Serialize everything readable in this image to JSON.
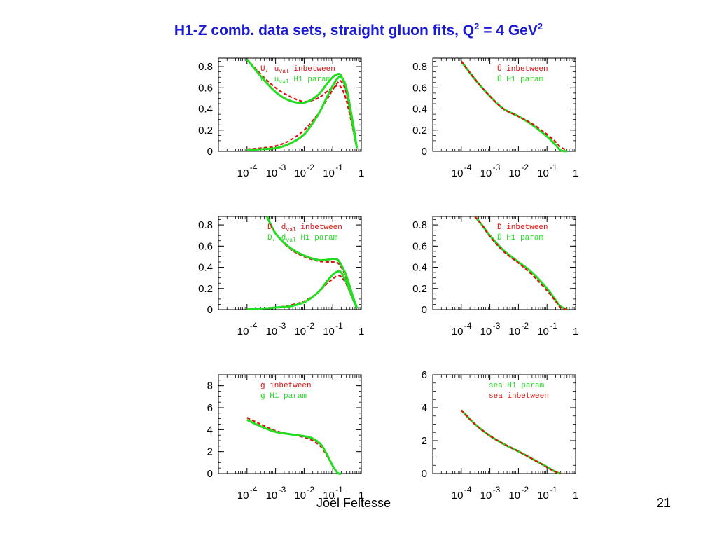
{
  "slide": {
    "title_main": "H1-Z comb. data sets, straight gluon fits, Q",
    "title_sup1": "2",
    "title_mid": " = 4 GeV",
    "title_sup2": "2",
    "author": "Joël Feltesse",
    "page_number": "21"
  },
  "colors": {
    "series_green": "#22dd22",
    "series_red": "#dd1111",
    "title_blue": "#1a1ad6"
  },
  "chart_data": [
    {
      "id": "U",
      "type": "line",
      "x_scale": "log",
      "xlim": [
        1e-05,
        1
      ],
      "ylim": [
        0,
        0.88
      ],
      "xticks": [
        {
          "base": "10",
          "exp": "-4"
        },
        {
          "base": "10",
          "exp": "-3"
        },
        {
          "base": "10",
          "exp": "-2"
        },
        {
          "base": "10",
          "exp": "-1"
        },
        {
          "base": "1",
          "exp": ""
        }
      ],
      "yticks": [
        "0",
        "0.2",
        "0.4",
        "0.6",
        "0.8"
      ],
      "ytick_values": [
        0,
        0.2,
        0.4,
        0.6,
        0.8
      ],
      "legend": [
        {
          "label": "U, u",
          "sub": "val",
          "tail": "  inbetween",
          "color": "red"
        },
        {
          "label": "U, u",
          "sub": "val",
          "tail": "  H1 param",
          "color": "green"
        }
      ],
      "series": [
        {
          "name": "U inbetween",
          "color": "red",
          "dashed": true,
          "x": [
            0.0001,
            0.0003,
            0.001,
            0.003,
            0.01,
            0.03,
            0.06,
            0.1,
            0.15,
            0.2,
            0.3,
            0.5,
            0.7
          ],
          "y": [
            0.87,
            0.73,
            0.6,
            0.52,
            0.47,
            0.5,
            0.56,
            0.6,
            0.62,
            0.6,
            0.48,
            0.22,
            0.03
          ]
        },
        {
          "name": "U H1 param",
          "color": "green",
          "dashed": false,
          "x": [
            0.0001,
            0.0003,
            0.001,
            0.003,
            0.01,
            0.03,
            0.06,
            0.1,
            0.15,
            0.2,
            0.3,
            0.5,
            0.7
          ],
          "y": [
            0.87,
            0.71,
            0.56,
            0.48,
            0.46,
            0.53,
            0.63,
            0.7,
            0.73,
            0.71,
            0.57,
            0.25,
            0.03
          ]
        },
        {
          "name": "u_val inbetween",
          "color": "red",
          "dashed": true,
          "x": [
            0.0001,
            0.0003,
            0.001,
            0.003,
            0.01,
            0.03,
            0.06,
            0.1,
            0.15,
            0.2,
            0.3,
            0.5,
            0.7
          ],
          "y": [
            0.02,
            0.03,
            0.05,
            0.1,
            0.2,
            0.35,
            0.48,
            0.58,
            0.65,
            0.66,
            0.55,
            0.26,
            0.03
          ]
        },
        {
          "name": "u_val H1 param",
          "color": "green",
          "dashed": false,
          "x": [
            0.0001,
            0.0003,
            0.001,
            0.003,
            0.01,
            0.03,
            0.06,
            0.1,
            0.15,
            0.2,
            0.3,
            0.5,
            0.7
          ],
          "y": [
            0.01,
            0.02,
            0.03,
            0.07,
            0.16,
            0.34,
            0.5,
            0.62,
            0.69,
            0.7,
            0.6,
            0.28,
            0.03
          ]
        }
      ]
    },
    {
      "id": "Ubar",
      "type": "line",
      "x_scale": "log",
      "xlim": [
        1e-05,
        1
      ],
      "ylim": [
        0,
        0.88
      ],
      "xticks": [
        {
          "base": "10",
          "exp": "-4"
        },
        {
          "base": "10",
          "exp": "-3"
        },
        {
          "base": "10",
          "exp": "-2"
        },
        {
          "base": "10",
          "exp": "-1"
        },
        {
          "base": "1",
          "exp": ""
        }
      ],
      "yticks": [
        "0",
        "0.2",
        "0.4",
        "0.6",
        "0.8"
      ],
      "ytick_values": [
        0,
        0.2,
        0.4,
        0.6,
        0.8
      ],
      "legend": [
        {
          "label": "Ū",
          "sub": "",
          "tail": "  inbetween",
          "color": "red"
        },
        {
          "label": "Ū",
          "sub": "",
          "tail": "  H1 param",
          "color": "green"
        }
      ],
      "series": [
        {
          "name": "Ubar H1 param",
          "color": "green",
          "dashed": false,
          "x": [
            0.0001,
            0.0003,
            0.001,
            0.003,
            0.01,
            0.03,
            0.1,
            0.2,
            0.3,
            0.5
          ],
          "y": [
            0.85,
            0.68,
            0.52,
            0.4,
            0.33,
            0.25,
            0.14,
            0.06,
            0.01,
            0
          ]
        },
        {
          "name": "Ubar inbetween",
          "color": "red",
          "dashed": true,
          "x": [
            0.0001,
            0.0003,
            0.001,
            0.003,
            0.01,
            0.03,
            0.1,
            0.2,
            0.3,
            0.5
          ],
          "y": [
            0.85,
            0.68,
            0.52,
            0.4,
            0.33,
            0.26,
            0.16,
            0.09,
            0.04,
            0.01
          ]
        }
      ]
    },
    {
      "id": "D",
      "type": "line",
      "x_scale": "log",
      "xlim": [
        1e-05,
        1
      ],
      "ylim": [
        0,
        0.88
      ],
      "xticks": [
        {
          "base": "10",
          "exp": "-4"
        },
        {
          "base": "10",
          "exp": "-3"
        },
        {
          "base": "10",
          "exp": "-2"
        },
        {
          "base": "10",
          "exp": "-1"
        },
        {
          "base": "1",
          "exp": ""
        }
      ],
      "yticks": [
        "0",
        "0.2",
        "0.4",
        "0.6",
        "0.8"
      ],
      "ytick_values": [
        0,
        0.2,
        0.4,
        0.6,
        0.8
      ],
      "legend": [
        {
          "label": "D, d",
          "sub": "val",
          "tail": "  inbetween",
          "color": "red"
        },
        {
          "label": "D, d",
          "sub": "val",
          "tail": "  H1 param",
          "color": "green"
        }
      ],
      "series": [
        {
          "name": "D inbetween",
          "color": "red",
          "dashed": true,
          "x": [
            0.0005,
            0.001,
            0.003,
            0.01,
            0.03,
            0.06,
            0.1,
            0.15,
            0.2,
            0.3,
            0.5,
            0.7
          ],
          "y": [
            0.88,
            0.72,
            0.58,
            0.5,
            0.46,
            0.45,
            0.45,
            0.44,
            0.4,
            0.3,
            0.12,
            0.02
          ]
        },
        {
          "name": "D H1 param",
          "color": "green",
          "dashed": false,
          "x": [
            0.0005,
            0.001,
            0.003,
            0.01,
            0.03,
            0.06,
            0.1,
            0.15,
            0.2,
            0.3,
            0.5,
            0.7
          ],
          "y": [
            0.88,
            0.72,
            0.59,
            0.51,
            0.47,
            0.47,
            0.48,
            0.47,
            0.42,
            0.32,
            0.13,
            0.02
          ]
        },
        {
          "name": "d_val inbetween",
          "color": "red",
          "dashed": true,
          "x": [
            0.0001,
            0.0003,
            0.001,
            0.003,
            0.01,
            0.03,
            0.06,
            0.1,
            0.15,
            0.2,
            0.3,
            0.5,
            0.7
          ],
          "y": [
            0.01,
            0.01,
            0.02,
            0.04,
            0.08,
            0.16,
            0.24,
            0.29,
            0.32,
            0.31,
            0.24,
            0.1,
            0.01
          ]
        },
        {
          "name": "d_val H1 param",
          "color": "green",
          "dashed": false,
          "x": [
            0.0001,
            0.0003,
            0.001,
            0.003,
            0.01,
            0.03,
            0.06,
            0.1,
            0.15,
            0.2,
            0.3,
            0.5,
            0.7
          ],
          "y": [
            0.01,
            0.01,
            0.02,
            0.03,
            0.07,
            0.16,
            0.26,
            0.33,
            0.36,
            0.35,
            0.26,
            0.11,
            0.01
          ]
        }
      ]
    },
    {
      "id": "Dbar",
      "type": "line",
      "x_scale": "log",
      "xlim": [
        1e-05,
        1
      ],
      "ylim": [
        0,
        0.88
      ],
      "xticks": [
        {
          "base": "10",
          "exp": "-4"
        },
        {
          "base": "10",
          "exp": "-3"
        },
        {
          "base": "10",
          "exp": "-2"
        },
        {
          "base": "10",
          "exp": "-1"
        },
        {
          "base": "1",
          "exp": ""
        }
      ],
      "yticks": [
        "0",
        "0.2",
        "0.4",
        "0.6",
        "0.8"
      ],
      "ytick_values": [
        0,
        0.2,
        0.4,
        0.6,
        0.8
      ],
      "legend": [
        {
          "label": "D̄",
          "sub": "",
          "tail": "  inbetween",
          "color": "red"
        },
        {
          "label": "D̄",
          "sub": "",
          "tail": "  H1 param",
          "color": "green"
        }
      ],
      "series": [
        {
          "name": "Dbar H1 param",
          "color": "green",
          "dashed": false,
          "x": [
            0.0003,
            0.0006,
            0.001,
            0.003,
            0.01,
            0.03,
            0.1,
            0.2,
            0.3,
            0.5
          ],
          "y": [
            0.88,
            0.78,
            0.7,
            0.56,
            0.45,
            0.35,
            0.2,
            0.09,
            0.03,
            0
          ]
        },
        {
          "name": "Dbar inbetween",
          "color": "red",
          "dashed": true,
          "x": [
            0.0003,
            0.0006,
            0.001,
            0.003,
            0.01,
            0.03,
            0.1,
            0.2,
            0.3,
            0.5
          ],
          "y": [
            0.88,
            0.78,
            0.69,
            0.55,
            0.44,
            0.33,
            0.18,
            0.08,
            0.02,
            0
          ]
        }
      ]
    },
    {
      "id": "g",
      "type": "line",
      "x_scale": "log",
      "xlim": [
        1e-05,
        1
      ],
      "ylim": [
        0,
        9
      ],
      "xticks": [
        {
          "base": "10",
          "exp": "-4"
        },
        {
          "base": "10",
          "exp": "-3"
        },
        {
          "base": "10",
          "exp": "-2"
        },
        {
          "base": "10",
          "exp": "-1"
        },
        {
          "base": "1",
          "exp": ""
        }
      ],
      "yticks": [
        "0",
        "2",
        "4",
        "6",
        "8"
      ],
      "ytick_values": [
        0,
        2,
        4,
        6,
        8
      ],
      "legend": [
        {
          "label": "g",
          "sub": "",
          "tail": "  inbetween",
          "color": "red"
        },
        {
          "label": "g",
          "sub": "",
          "tail": "  H1 param",
          "color": "green"
        }
      ],
      "series": [
        {
          "name": "g inbetween",
          "color": "red",
          "dashed": true,
          "x": [
            0.0001,
            0.0003,
            0.001,
            0.003,
            0.01,
            0.02,
            0.04,
            0.07,
            0.1,
            0.15,
            0.2
          ],
          "y": [
            5.1,
            4.5,
            3.9,
            3.6,
            3.3,
            3.0,
            2.4,
            1.4,
            0.7,
            0.05,
            0
          ]
        },
        {
          "name": "g H1 param",
          "color": "green",
          "dashed": false,
          "x": [
            0.0001,
            0.0003,
            0.001,
            0.003,
            0.01,
            0.02,
            0.04,
            0.07,
            0.1,
            0.15,
            0.2
          ],
          "y": [
            4.9,
            4.3,
            3.8,
            3.6,
            3.4,
            3.2,
            2.6,
            1.5,
            0.7,
            0.05,
            0
          ]
        }
      ]
    },
    {
      "id": "sea",
      "type": "line",
      "x_scale": "log",
      "xlim": [
        1e-05,
        1
      ],
      "ylim": [
        0,
        6
      ],
      "xticks": [
        {
          "base": "10",
          "exp": "-4"
        },
        {
          "base": "10",
          "exp": "-3"
        },
        {
          "base": "10",
          "exp": "-2"
        },
        {
          "base": "10",
          "exp": "-1"
        },
        {
          "base": "1",
          "exp": ""
        }
      ],
      "yticks": [
        "0",
        "2",
        "4",
        "6"
      ],
      "ytick_values": [
        0,
        2,
        4,
        6
      ],
      "legend": [
        {
          "label": "sea",
          "sub": "",
          "tail": "  H1 param",
          "color": "green"
        },
        {
          "label": "sea",
          "sub": "",
          "tail": "  inbetween",
          "color": "red"
        }
      ],
      "series": [
        {
          "name": "sea H1 param",
          "color": "green",
          "dashed": false,
          "x": [
            0.0001,
            0.0003,
            0.001,
            0.003,
            0.01,
            0.03,
            0.1,
            0.2,
            0.3
          ],
          "y": [
            3.85,
            3.0,
            2.3,
            1.8,
            1.35,
            0.9,
            0.4,
            0.1,
            0
          ]
        },
        {
          "name": "sea inbetween",
          "color": "red",
          "dashed": true,
          "x": [
            0.0001,
            0.0003,
            0.001,
            0.003,
            0.01,
            0.03,
            0.1,
            0.2,
            0.3
          ],
          "y": [
            3.85,
            3.0,
            2.3,
            1.8,
            1.35,
            0.9,
            0.38,
            0.1,
            0
          ]
        }
      ]
    }
  ]
}
